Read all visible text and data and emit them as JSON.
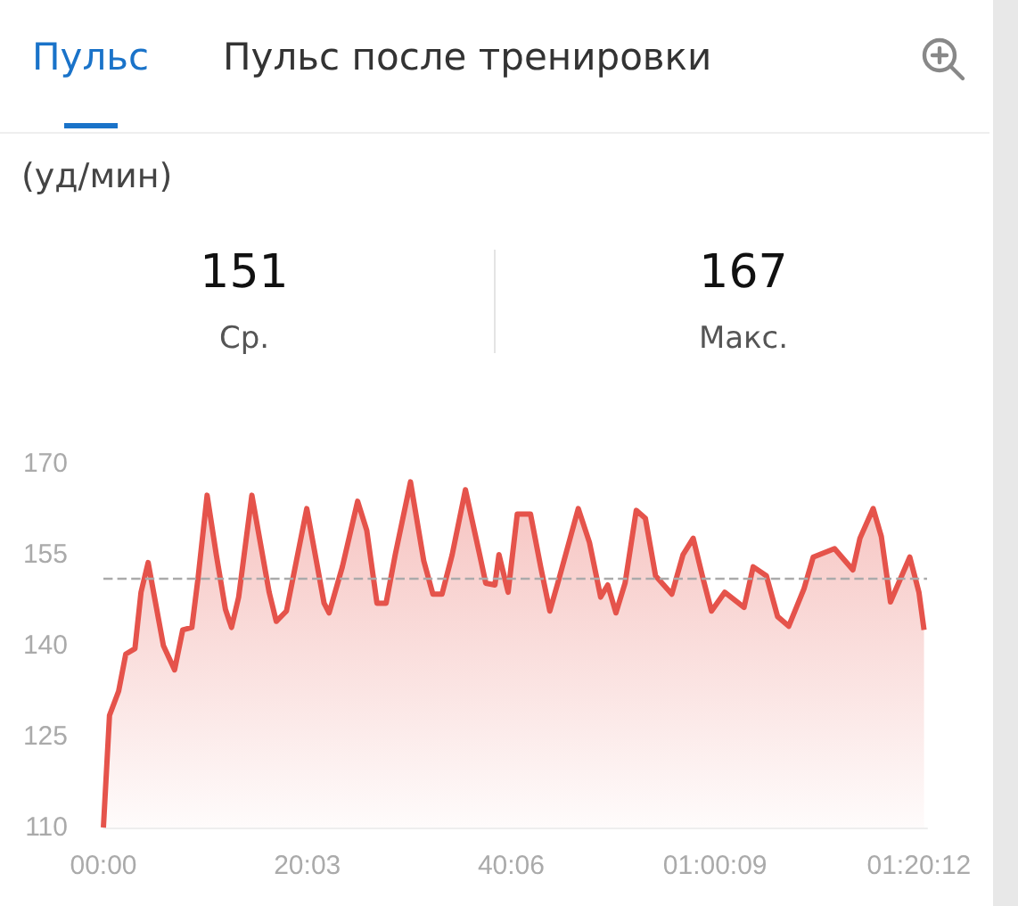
{
  "chart_data": {
    "type": "area",
    "annotations": [
      "Пульс",
      "Пульс после тренировки",
      "151",
      "Ср.",
      "167",
      "Макс.",
      "(уд/мин)"
    ],
    "x": [
      0,
      0.6,
      1.5,
      2.2,
      3.1,
      3.7,
      4.4,
      5.9,
      7,
      7.8,
      8.7,
      9.3,
      10.2,
      11.1,
      12,
      12.6,
      13.3,
      14.6,
      16.3,
      17,
      18,
      20,
      21.7,
      22.2,
      23.5,
      25,
      25.9,
      26.9,
      27.8,
      28.7,
      30.2,
      31.5,
      32.4,
      33.3,
      34.3,
      35.6,
      37,
      37.6,
      38.5,
      38.9,
      39.8,
      40.7,
      42,
      43,
      43.9,
      44.8,
      46.7,
      47.8,
      48.9,
      49.6,
      50.4,
      51.3,
      52.4,
      53.3,
      54.3,
      55.9,
      57,
      58,
      58.9,
      59.8,
      61.1,
      63,
      63.9,
      65.2,
      66.3,
      67.4,
      68.9,
      69.8,
      71.9,
      73.7,
      74.4,
      75.7,
      76.5,
      77.4,
      79.3,
      80.2,
      80.7
    ],
    "series": [
      {
        "color": "#e5534b",
        "values": [
          110,
          128.5,
          132.5,
          138.6,
          139.5,
          148.8,
          153.7,
          140,
          136,
          142.6,
          143,
          151,
          164.8,
          155,
          146,
          143,
          148,
          164.8,
          148.8,
          144,
          145.7,
          162.6,
          147,
          145.4,
          153,
          163.8,
          159,
          147,
          147,
          155,
          167,
          154,
          148.5,
          148.5,
          155,
          165.7,
          155,
          150.3,
          150,
          155,
          148.8,
          161.7,
          161.7,
          153,
          145.7,
          151,
          162.6,
          157,
          148,
          150,
          145.4,
          150.3,
          162.3,
          161,
          151.5,
          148.5,
          155,
          157.7,
          151.5,
          145.7,
          148.8,
          146.3,
          153,
          151.5,
          144.8,
          143.2,
          149.4,
          154.6,
          156,
          152.5,
          157.7,
          162.6,
          158,
          147.2,
          154.6,
          148.8,
          142.6
        ]
      }
    ],
    "xlim": [
      0,
      81
    ],
    "xticks": [
      {
        "value": 0,
        "label": "00:00"
      },
      {
        "value": 20.05,
        "label": "20:03"
      },
      {
        "value": 40.1,
        "label": "40:06"
      },
      {
        "value": 60.15,
        "label": "01:00:09"
      },
      {
        "value": 80.2,
        "label": "01:20:12"
      }
    ],
    "ylim": [
      110,
      170
    ],
    "yticks": [
      110,
      125,
      140,
      155,
      170
    ],
    "ref_lines": [
      {
        "axis": "y",
        "value": 151,
        "label": null,
        "color": "#aaaaaa",
        "line_style": "dashed"
      }
    ],
    "grid": false,
    "marker": "none",
    "line_style": "solid"
  }
}
